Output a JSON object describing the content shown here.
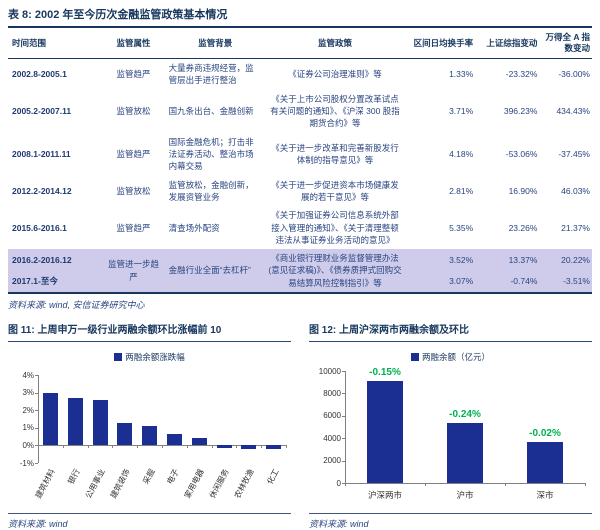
{
  "colors": {
    "accent_navy": "#17375E",
    "text_navy": "#2A4580",
    "bar_blue": "#1A2F91",
    "highlight_row": "#CECCEA",
    "green_label": "#00B050"
  },
  "table": {
    "title": "表 8: 2002 年至今历次金融监管政策基本情况",
    "headers": [
      "时间范围",
      "监管属性",
      "监管背景",
      "监管政策",
      "区间日均换手率",
      "上证综指变动",
      "万得全 A 指数变动"
    ],
    "rows": [
      {
        "time": "2002.8-2005.1",
        "attr": "监管趋严",
        "background": "大量券商违规经营，监管层出手进行整治",
        "policy": "《证券公司治理准则》等",
        "turnover": "1.33%",
        "sse": "-23.32%",
        "winda": "-36.00%"
      },
      {
        "time": "2005.2-2007.11",
        "attr": "监管放松",
        "background": "国九条出台、金融创新",
        "policy": "《关于上市公司股权分置改革试点有关问题的通知》、《沪深 300 股指期货合约》等",
        "turnover": "3.71%",
        "sse": "396.23%",
        "winda": "434.43%"
      },
      {
        "time": "2008.1-2011.11",
        "attr": "监管趋严",
        "background": "国际金融危机；打击非法证券活动、整治市场内幕交易",
        "policy": "《关于进一步改革和完善新股发行体制的指导意见》等",
        "turnover": "4.18%",
        "sse": "-53.06%",
        "winda": "-37.45%"
      },
      {
        "time": "2012.2-2014.12",
        "attr": "监管放松",
        "background": "监管放松，金融创新，发展资管业务",
        "policy": "《关于进一步促进资本市场健康发展的若干意见》等",
        "turnover": "2.81%",
        "sse": "16.90%",
        "winda": "46.03%"
      },
      {
        "time": "2015.6-2016.1",
        "attr": "监管趋严",
        "background": "清查场外配资",
        "policy": "《关于加强证券公司信息系统外部接入管理的通知》、《关于清理整顿违法从事证券业务活动的意见》",
        "turnover": "5.35%",
        "sse": "23.26%",
        "winda": "21.37%"
      }
    ],
    "merged_group": {
      "attr": "监管进一步趋严",
      "background": "金融行业全面“去杠杆”",
      "policy": "《商业银行理财业务监督管理办法(意见征求稿)》、《债券质押式回购交易结算风险控制指引》等",
      "rows": [
        {
          "time": "2016.2-2016.12",
          "turnover": "3.52%",
          "sse": "13.37%",
          "winda": "20.22%"
        },
        {
          "time": "2017.1-至今",
          "turnover": "3.07%",
          "sse": "-0.74%",
          "winda": "-3.51%"
        }
      ]
    },
    "source": "资料来源: wind, 安信证券研究中心"
  },
  "figure11": {
    "title": "图 11: 上周申万一级行业两融余额环比涨幅前 10",
    "legend": "两融余额涨跌幅",
    "source": "资料来源: wind"
  },
  "figure12": {
    "title": "图 12: 上周沪深两市两融余额及环比",
    "legend": "两融余额（亿元）",
    "source": "资料来源: wind"
  },
  "chart_data": [
    {
      "type": "bar",
      "title": "上周申万一级行业两融余额环比涨幅前 10",
      "legend": [
        "两融余额涨跌幅"
      ],
      "categories": [
        "建筑材料",
        "银行",
        "公用事业",
        "建筑装饰",
        "采掘",
        "电子",
        "家用电器",
        "休闲服务",
        "农林牧渔",
        "化工"
      ],
      "values": [
        3.0,
        2.7,
        2.6,
        1.3,
        1.1,
        0.65,
        0.45,
        -0.15,
        -0.2,
        -0.2
      ],
      "unit": "%",
      "ylim": [
        -1,
        4
      ],
      "yticks": [
        4,
        3,
        2,
        1,
        0,
        -1
      ],
      "ytick_labels": [
        "4%",
        "3%",
        "2%",
        "1%",
        "0%",
        "-1%"
      ],
      "xlabel": "",
      "ylabel": "",
      "grid": false,
      "legend_position": "top"
    },
    {
      "type": "bar",
      "title": "上周沪深两市两融余额及环比",
      "legend": [
        "两融余额（亿元）"
      ],
      "categories": [
        "沪深两市",
        "沪市",
        "深市"
      ],
      "values": [
        9100,
        5400,
        3700
      ],
      "bar_labels": [
        "-0.15%",
        "-0.24%",
        "-0.02%"
      ],
      "unit": "亿元",
      "ylim": [
        0,
        10000
      ],
      "yticks": [
        10000,
        8000,
        6000,
        4000,
        2000,
        0
      ],
      "ytick_labels": [
        "10000",
        "8000",
        "6000",
        "4000",
        "2000",
        "0"
      ],
      "xlabel": "",
      "ylabel": "",
      "grid": false,
      "legend_position": "top"
    }
  ]
}
